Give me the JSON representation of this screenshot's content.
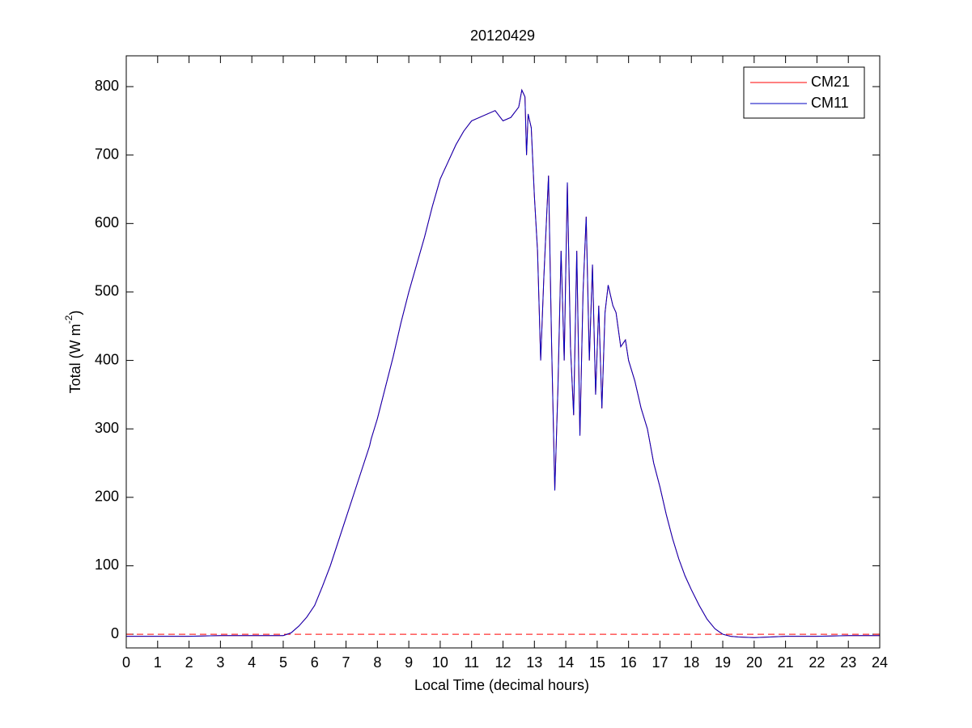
{
  "chart_data": {
    "type": "line",
    "title": "20120429",
    "xlabel": "Local Time (decimal hours)",
    "ylabel": {
      "text": "Total (W m",
      "sup": "-2",
      "close": ")"
    },
    "x": [
      0,
      1,
      2,
      3,
      4,
      5,
      5.25,
      5.5,
      5.75,
      6,
      6.25,
      6.5,
      6.75,
      7,
      7.25,
      7.5,
      7.75,
      7.8,
      8,
      8.25,
      8.5,
      8.75,
      9,
      9.25,
      9.5,
      9.75,
      10,
      10.25,
      10.5,
      10.75,
      11,
      11.25,
      11.5,
      11.75,
      12,
      12.25,
      12.5,
      12.6,
      12.7,
      12.75,
      12.8,
      12.9,
      13,
      13.1,
      13.2,
      13.3,
      13.45,
      13.55,
      13.65,
      13.75,
      13.85,
      13.95,
      14.05,
      14.15,
      14.25,
      14.35,
      14.45,
      14.55,
      14.65,
      14.75,
      14.85,
      14.95,
      15.05,
      15.15,
      15.25,
      15.35,
      15.5,
      15.6,
      15.75,
      15.9,
      16,
      16.2,
      16.4,
      16.6,
      16.8,
      17,
      17.2,
      17.4,
      17.6,
      17.8,
      18,
      18.25,
      18.5,
      18.75,
      19,
      19.25,
      19.5,
      20,
      20.5,
      21,
      22,
      23,
      24
    ],
    "series": [
      {
        "name": "CM21",
        "color": "#ff0000",
        "values": [
          -3,
          -3,
          -3,
          -2,
          -2,
          -2,
          2,
          12,
          25,
          42,
          70,
          100,
          135,
          170,
          205,
          240,
          275,
          285,
          315,
          360,
          405,
          455,
          500,
          540,
          580,
          625,
          665,
          690,
          715,
          735,
          750,
          755,
          760,
          765,
          750,
          755,
          770,
          795,
          785,
          700,
          760,
          740,
          640,
          560,
          400,
          520,
          670,
          420,
          210,
          360,
          560,
          400,
          660,
          420,
          320,
          560,
          290,
          500,
          610,
          400,
          540,
          350,
          480,
          330,
          470,
          510,
          480,
          470,
          420,
          430,
          400,
          370,
          330,
          300,
          250,
          215,
          175,
          140,
          110,
          85,
          65,
          42,
          22,
          8,
          0,
          -3,
          -4,
          -5,
          -4,
          -3,
          -3,
          -2,
          -2
        ]
      },
      {
        "name": "CM11",
        "color": "#0000c0",
        "values": [
          -3,
          -3,
          -3,
          -2,
          -2,
          -2,
          2,
          12,
          25,
          42,
          70,
          100,
          135,
          170,
          205,
          240,
          275,
          285,
          315,
          360,
          405,
          455,
          500,
          540,
          580,
          625,
          665,
          690,
          715,
          735,
          750,
          755,
          760,
          765,
          750,
          755,
          770,
          795,
          785,
          700,
          760,
          740,
          640,
          560,
          400,
          520,
          670,
          420,
          210,
          360,
          560,
          400,
          660,
          420,
          320,
          560,
          290,
          500,
          610,
          400,
          540,
          350,
          480,
          330,
          470,
          510,
          480,
          470,
          420,
          430,
          400,
          370,
          330,
          300,
          250,
          215,
          175,
          140,
          110,
          85,
          65,
          42,
          22,
          8,
          0,
          -3,
          -4,
          -5,
          -4,
          -3,
          -3,
          -2,
          -2
        ]
      }
    ],
    "hline": {
      "value": 0,
      "color": "#ff0000",
      "dash": true
    },
    "xlim": [
      0,
      24
    ],
    "xticks": [
      0,
      1,
      2,
      3,
      4,
      5,
      6,
      7,
      8,
      9,
      10,
      11,
      12,
      13,
      14,
      15,
      16,
      17,
      18,
      19,
      20,
      21,
      22,
      23,
      24
    ],
    "ylim": [
      -20,
      845
    ],
    "yticks": [
      0,
      100,
      200,
      300,
      400,
      500,
      600,
      700,
      800
    ],
    "legend": "upper right",
    "grid": false
  }
}
